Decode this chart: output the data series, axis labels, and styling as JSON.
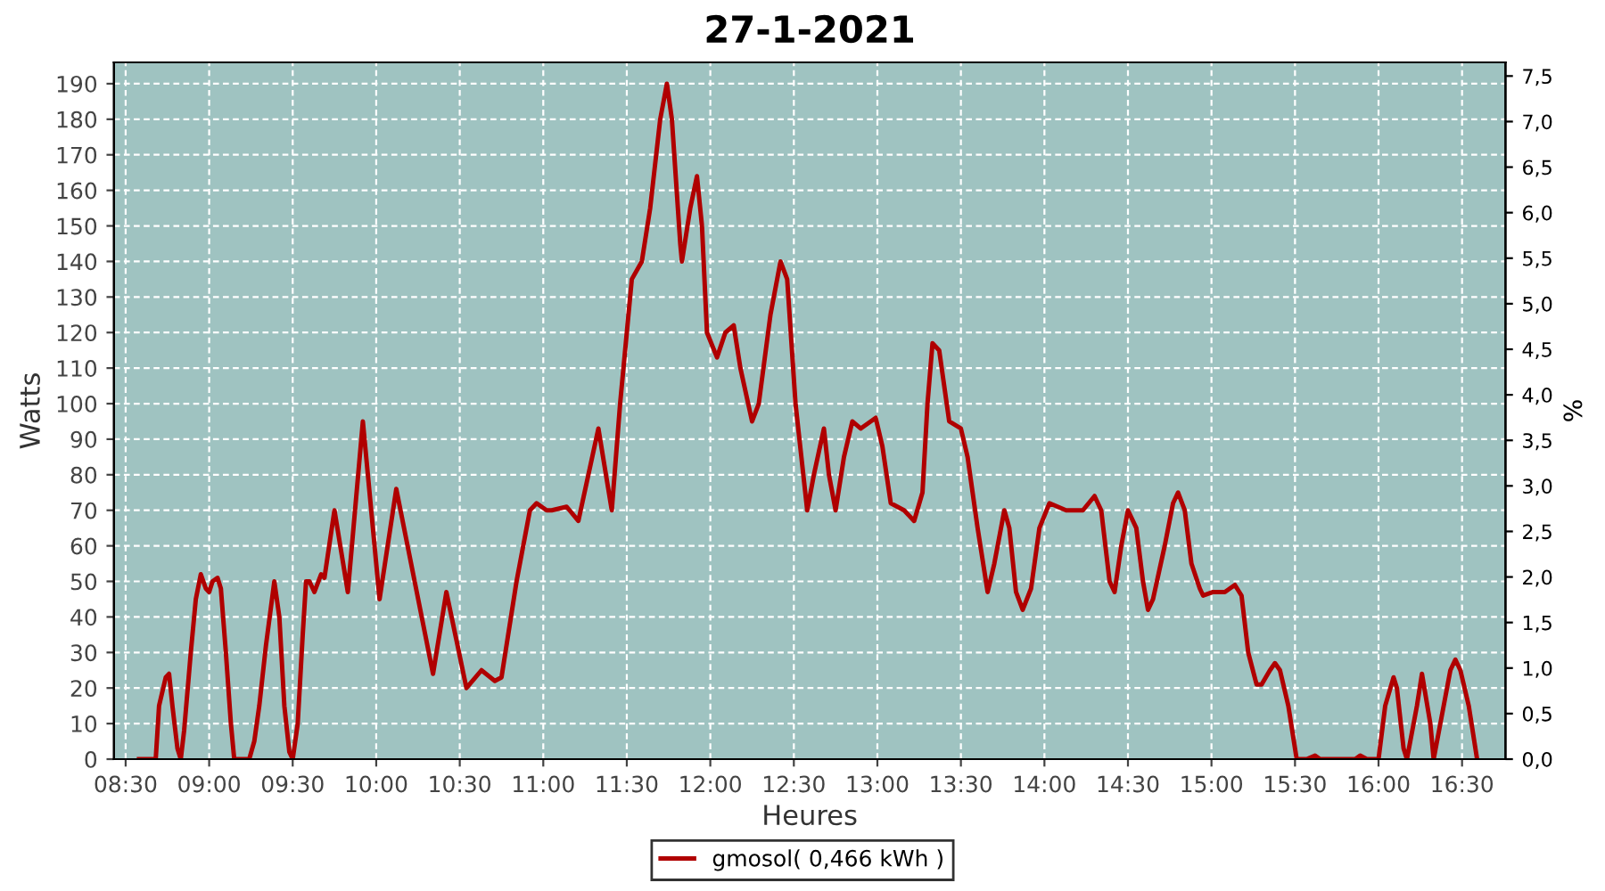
{
  "chart_data": {
    "type": "line",
    "title": "27-1-2021",
    "xlabel": "Heures",
    "ylabel": "Watts",
    "y2label": "%",
    "xlim": [
      8.43,
      16.76
    ],
    "xticks": [
      {
        "value": 8.5,
        "label": "08:30"
      },
      {
        "value": 9,
        "label": "09:00"
      },
      {
        "value": 9.5,
        "label": "09:30"
      },
      {
        "value": 10,
        "label": "10:00"
      },
      {
        "value": 10.5,
        "label": "10:30"
      },
      {
        "value": 11,
        "label": "11:00"
      },
      {
        "value": 11.5,
        "label": "11:30"
      },
      {
        "value": 12,
        "label": "12:00"
      },
      {
        "value": 12.5,
        "label": "12:30"
      },
      {
        "value": 13,
        "label": "13:00"
      },
      {
        "value": 13.5,
        "label": "13:30"
      },
      {
        "value": 14,
        "label": "14:00"
      },
      {
        "value": 14.5,
        "label": "14:30"
      },
      {
        "value": 15,
        "label": "15:00"
      },
      {
        "value": 15.5,
        "label": "15:30"
      },
      {
        "value": 16,
        "label": "16:00"
      },
      {
        "value": 16.5,
        "label": "16:30"
      }
    ],
    "ylim": [
      0,
      196
    ],
    "yticks": [
      0,
      10,
      20,
      30,
      40,
      50,
      60,
      70,
      80,
      90,
      100,
      110,
      120,
      130,
      140,
      150,
      160,
      170,
      180,
      190
    ],
    "y2lim": [
      0,
      7.65
    ],
    "y2ticks": [
      {
        "value": 0,
        "label": "0,0"
      },
      {
        "value": 0.5,
        "label": "0,5"
      },
      {
        "value": 1,
        "label": "1,0"
      },
      {
        "value": 1.5,
        "label": "1,5"
      },
      {
        "value": 2,
        "label": "2,0"
      },
      {
        "value": 2.5,
        "label": "2,5"
      },
      {
        "value": 3,
        "label": "3,0"
      },
      {
        "value": 3.5,
        "label": "3,5"
      },
      {
        "value": 4,
        "label": "4,0"
      },
      {
        "value": 4.5,
        "label": "4,5"
      },
      {
        "value": 5,
        "label": "5,0"
      },
      {
        "value": 5.5,
        "label": "5,5"
      },
      {
        "value": 6,
        "label": "6,0"
      },
      {
        "value": 6.5,
        "label": "6,5"
      },
      {
        "value": 7,
        "label": "7,0"
      },
      {
        "value": 7.5,
        "label": "7,5"
      }
    ],
    "grid": true,
    "legend": "bottom",
    "marker": "none",
    "line_style": "solid",
    "series": [
      {
        "name": "gmosol( 0,466 kWh )",
        "color": "#b00000",
        "x": [
          8.58,
          8.68,
          8.7,
          8.74,
          8.76,
          8.78,
          8.81,
          8.83,
          8.85,
          8.89,
          8.92,
          8.95,
          8.98,
          9.0,
          9.02,
          9.05,
          9.07,
          9.1,
          9.13,
          9.15,
          9.24,
          9.27,
          9.3,
          9.34,
          9.39,
          9.42,
          9.45,
          9.48,
          9.5,
          9.53,
          9.56,
          9.58,
          9.6,
          9.63,
          9.67,
          9.69,
          9.75,
          9.83,
          9.92,
          10.02,
          10.12,
          10.34,
          10.42,
          10.54,
          10.63,
          10.71,
          10.75,
          10.84,
          10.92,
          10.96,
          11.02,
          11.05,
          11.14,
          11.21,
          11.33,
          11.41,
          11.46,
          11.53,
          11.59,
          11.64,
          11.7,
          11.74,
          11.77,
          11.82,
          11.83,
          11.88,
          11.92,
          11.95,
          11.98,
          12.04,
          12.09,
          12.14,
          12.18,
          12.25,
          12.29,
          12.36,
          12.42,
          12.46,
          12.51,
          12.58,
          12.62,
          12.68,
          12.71,
          12.75,
          12.8,
          12.85,
          12.9,
          12.99,
          13.03,
          13.08,
          13.16,
          13.22,
          13.27,
          13.3,
          13.33,
          13.37,
          13.43,
          13.5,
          13.54,
          13.6,
          13.66,
          13.7,
          13.76,
          13.79,
          13.83,
          13.87,
          13.92,
          13.97,
          14.03,
          14.13,
          14.23,
          14.3,
          14.34,
          14.39,
          14.42,
          14.46,
          14.5,
          14.55,
          14.59,
          14.62,
          14.65,
          14.72,
          14.77,
          14.8,
          14.84,
          14.88,
          14.93,
          14.95,
          15.01,
          15.08,
          15.14,
          15.18,
          15.22,
          15.27,
          15.3,
          15.35,
          15.38,
          15.41,
          15.46,
          15.51,
          15.57,
          15.62,
          15.65,
          15.86,
          15.89,
          15.93,
          16.0,
          16.04,
          16.09,
          16.11,
          16.15,
          16.17,
          16.23,
          16.26,
          16.31,
          16.33,
          16.37,
          16.43,
          16.46,
          16.49,
          16.54,
          16.59
        ],
        "values": [
          0,
          0,
          15,
          23,
          24,
          15,
          3,
          0,
          8,
          30,
          45,
          52,
          48,
          47,
          50,
          51,
          48,
          30,
          10,
          0,
          0,
          5,
          15,
          32,
          50,
          40,
          15,
          2,
          0,
          10,
          35,
          50,
          50,
          47,
          52,
          51,
          70,
          47,
          95,
          45,
          76,
          24,
          47,
          20,
          25,
          22,
          23,
          50,
          70,
          72,
          70,
          70,
          71,
          67,
          93,
          70,
          100,
          135,
          140,
          155,
          180,
          190,
          180,
          145,
          140,
          155,
          164,
          150,
          120,
          113,
          120,
          122,
          110,
          95,
          100,
          125,
          140,
          135,
          100,
          70,
          80,
          93,
          80,
          70,
          85,
          95,
          93,
          96,
          88,
          72,
          70,
          67,
          75,
          100,
          117,
          115,
          95,
          93,
          85,
          65,
          47,
          55,
          70,
          65,
          47,
          42,
          48,
          65,
          72,
          70,
          70,
          74,
          70,
          50,
          47,
          60,
          70,
          65,
          50,
          42,
          45,
          60,
          72,
          75,
          70,
          55,
          48,
          46,
          47,
          47,
          49,
          46,
          30,
          21,
          21,
          25,
          27,
          25,
          15,
          0,
          0,
          1,
          0,
          0,
          1,
          0,
          0,
          15,
          23,
          20,
          3,
          0,
          15,
          24,
          10,
          0,
          10,
          25,
          28,
          25,
          15,
          0
        ]
      }
    ]
  }
}
